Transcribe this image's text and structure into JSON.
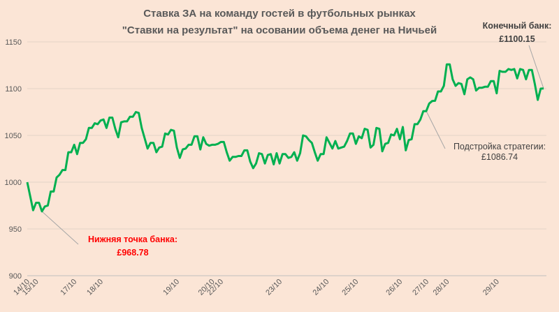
{
  "chart_data": {
    "type": "line",
    "title_line1": "Ставка ЗА на команду гостей в футбольных рынках",
    "title_line2": "\"Ставки на результат\" на осовании объема денег на Ничьей",
    "ylim": [
      900,
      1150
    ],
    "yticks": [
      900,
      950,
      1000,
      1050,
      1100,
      1150
    ],
    "x_tick_labels": [
      {
        "label": "14/10",
        "idx": 0
      },
      {
        "label": "15/10",
        "idx": 3
      },
      {
        "label": "17/10",
        "idx": 16
      },
      {
        "label": "18/10",
        "idx": 25
      },
      {
        "label": "19/10",
        "idx": 51
      },
      {
        "label": "20/10",
        "idx": 63
      },
      {
        "label": "22/10",
        "idx": 66
      },
      {
        "label": "23/10",
        "idx": 86
      },
      {
        "label": "24/10",
        "idx": 102
      },
      {
        "label": "25/10",
        "idx": 112
      },
      {
        "label": "26/10",
        "idx": 127
      },
      {
        "label": "27/10",
        "idx": 136
      },
      {
        "label": "28/10",
        "idx": 143
      },
      {
        "label": "29/10",
        "idx": 160
      }
    ],
    "line_color": "#00b050",
    "series": [
      {
        "values": [
          1000,
          985,
          970,
          978,
          978,
          968.78,
          974,
          975,
          990,
          990,
          1005,
          1008,
          1013,
          1013,
          1032,
          1032,
          1040,
          1030,
          1042,
          1042,
          1046,
          1058,
          1058,
          1063,
          1062,
          1066,
          1067,
          1058,
          1069,
          1069,
          1057,
          1048,
          1064,
          1065,
          1065,
          1070,
          1070,
          1075,
          1074,
          1058,
          1047,
          1036,
          1042,
          1042,
          1032,
          1037,
          1038,
          1052,
          1051,
          1056,
          1055,
          1037,
          1026,
          1035,
          1036,
          1040,
          1040,
          1049,
          1049,
          1035,
          1048,
          1041,
          1039,
          1040,
          1040,
          1041,
          1043,
          1043,
          1032,
          1023,
          1027,
          1027,
          1028,
          1028,
          1034,
          1034,
          1022,
          1015,
          1020,
          1031,
          1030,
          1020,
          1029,
          1030,
          1019,
          1031,
          1020,
          1030,
          1030,
          1026,
          1027,
          1032,
          1023,
          1031,
          1050,
          1049,
          1045,
          1042,
          1032,
          1023,
          1030,
          1030,
          1048,
          1042,
          1036,
          1044,
          1036,
          1037,
          1038,
          1044,
          1052,
          1052,
          1041,
          1049,
          1047,
          1057,
          1056,
          1037,
          1040,
          1058,
          1057,
          1033,
          1041,
          1042,
          1051,
          1050,
          1057,
          1046,
          1059,
          1034,
          1045,
          1046,
          1062,
          1062,
          1067,
          1076,
          1076,
          1084,
          1086.74,
          1087,
          1097,
          1097,
          1103,
          1126,
          1126,
          1110,
          1103,
          1106,
          1105,
          1094,
          1110,
          1112,
          1110,
          1098,
          1101,
          1101,
          1102,
          1102,
          1108,
          1108,
          1095,
          1119,
          1118,
          1118,
          1121,
          1120,
          1121,
          1111,
          1121,
          1120,
          1110,
          1120,
          1120,
          1105,
          1088,
          1100,
          1100.15
        ]
      }
    ],
    "annotations": {
      "low": {
        "label": "Нижняя точка банка:",
        "value": "£968.78",
        "color": "#ff0000",
        "idx": 5
      },
      "strategy": {
        "label": "Подстройка стратегии:",
        "value": "£1086.74",
        "color": "#404040",
        "idx": 136
      },
      "final": {
        "label": "Конечный банк:",
        "value": "£1100.15",
        "color": "#404040"
      }
    }
  }
}
